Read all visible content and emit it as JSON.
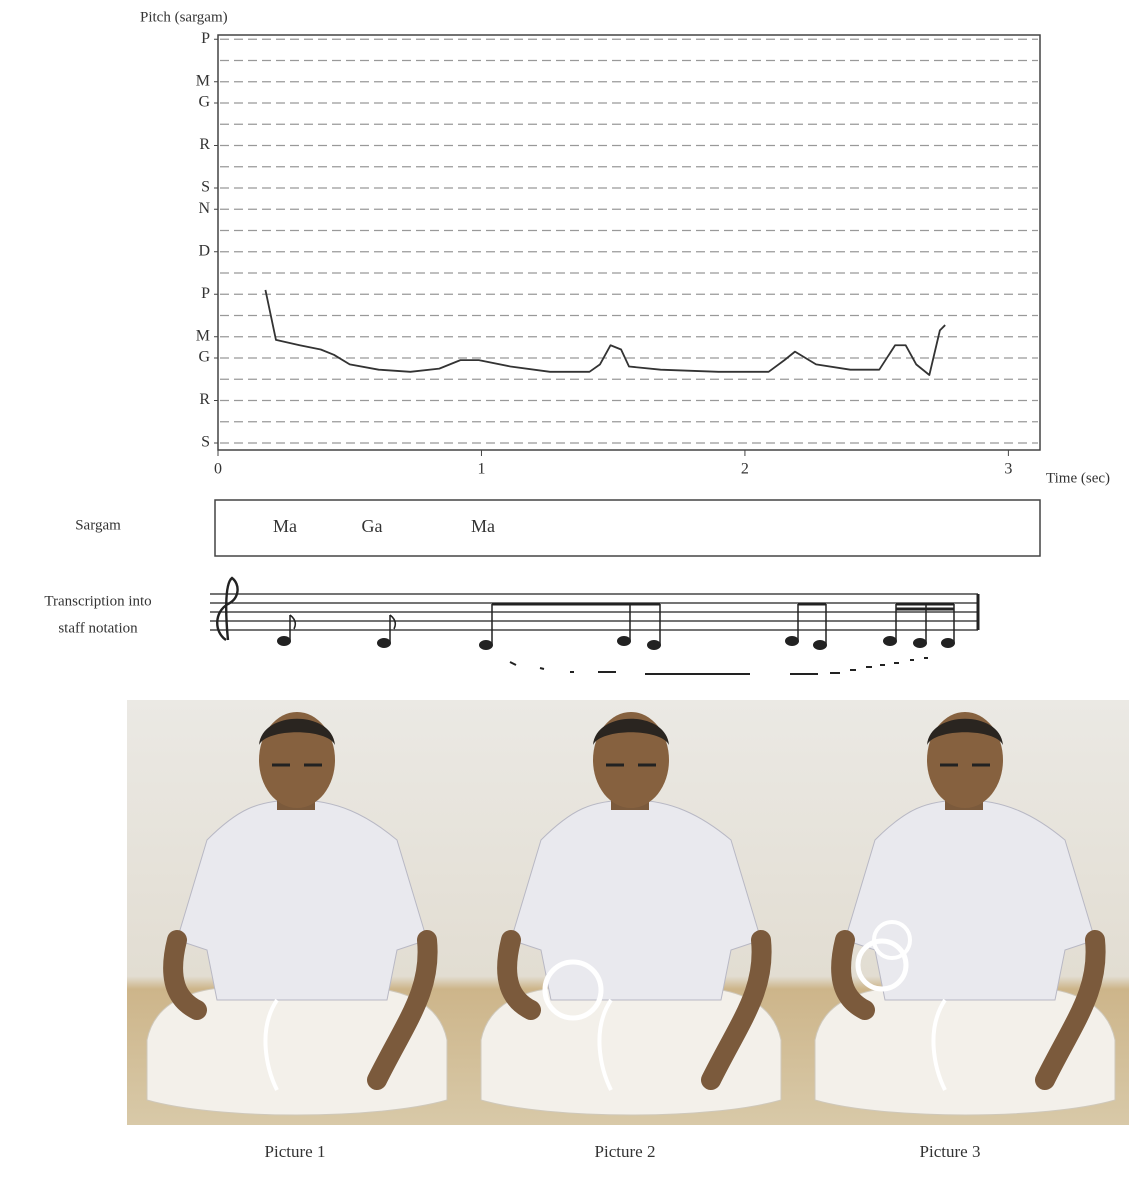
{
  "chart_data": {
    "type": "line",
    "ylabel": "Pitch (sargam)",
    "xlabel": "Time (sec)",
    "xlim": [
      0,
      3.12
    ],
    "ylim": [
      -0.33,
      19.2
    ],
    "xticks": [
      0,
      1,
      2,
      3
    ],
    "yticks": [
      {
        "value": 0,
        "label": "S"
      },
      {
        "value": 2,
        "label": "R"
      },
      {
        "value": 4,
        "label": "G"
      },
      {
        "value": 5,
        "label": "M"
      },
      {
        "value": 7,
        "label": "P"
      },
      {
        "value": 9,
        "label": "D"
      },
      {
        "value": 11,
        "label": "N"
      },
      {
        "value": 12,
        "label": "S"
      },
      {
        "value": 14,
        "label": "R"
      },
      {
        "value": 16,
        "label": "G"
      },
      {
        "value": 17,
        "label": "M"
      },
      {
        "value": 19,
        "label": "P"
      }
    ],
    "grid": true,
    "ygrid": [
      0,
      1,
      2,
      3,
      4,
      5,
      6,
      7,
      8,
      9,
      10,
      11,
      12,
      13,
      14,
      15,
      16,
      17,
      18,
      19
    ],
    "x": [
      0.18,
      0.22,
      0.31,
      0.39,
      0.44,
      0.5,
      0.61,
      0.73,
      0.84,
      0.92,
      0.99,
      1.11,
      1.26,
      1.41,
      1.45,
      1.49,
      1.53,
      1.56,
      1.68,
      1.9,
      2.09,
      2.15,
      2.19,
      2.27,
      2.4,
      2.51,
      2.57,
      2.61,
      2.65,
      2.7,
      2.74,
      2.76
    ],
    "series": [
      {
        "color": "#333333",
        "values": [
          7.2,
          4.85,
          4.6,
          4.4,
          4.15,
          3.7,
          3.45,
          3.35,
          3.5,
          3.9,
          3.9,
          3.6,
          3.35,
          3.35,
          3.7,
          4.6,
          4.4,
          3.6,
          3.45,
          3.35,
          3.35,
          3.9,
          4.3,
          3.7,
          3.45,
          3.45,
          4.6,
          4.6,
          3.7,
          3.2,
          5.3,
          5.55
        ]
      }
    ]
  },
  "sargam": {
    "label": "Sargam",
    "notes": [
      "Ma",
      "Ga",
      "Ma"
    ]
  },
  "transcription": {
    "label_lines": [
      "Transcription into",
      "staff notation"
    ]
  },
  "pictures": [
    "Picture 1",
    "Picture 2",
    "Picture 3"
  ]
}
